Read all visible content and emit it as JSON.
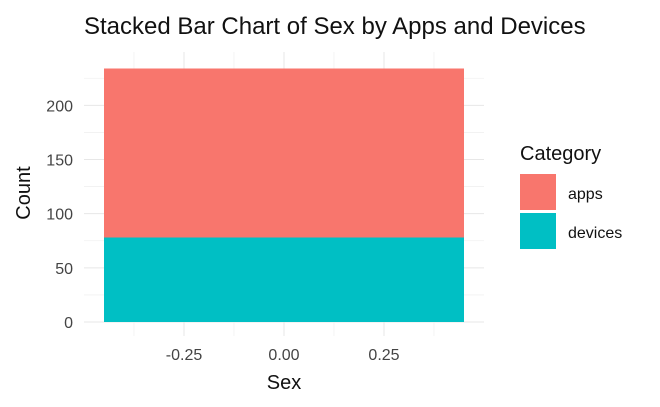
{
  "chart_data": {
    "type": "bar",
    "stacked": true,
    "title": "Stacked Bar Chart of Sex by Apps and Devices",
    "xlabel": "Sex",
    "ylabel": "Count",
    "x_ticks": [
      "-0.25",
      "0.00",
      "0.25"
    ],
    "y_ticks": [
      "0",
      "50",
      "100",
      "150",
      "200"
    ],
    "x_tick_values": [
      -0.25,
      0,
      0.25
    ],
    "y_tick_values": [
      0,
      50,
      100,
      150,
      200
    ],
    "xlim": [
      -0.5,
      0.5
    ],
    "ylim": [
      0,
      240
    ],
    "bar_x_range": [
      -0.45,
      0.45
    ],
    "grid": true,
    "legend": {
      "title": "Category",
      "placement": "right",
      "items": [
        "apps",
        "devices"
      ]
    },
    "series": [
      {
        "name": "devices",
        "value": 78,
        "color": "#00BFC4"
      },
      {
        "name": "apps",
        "value": 156,
        "color": "#F8766D"
      }
    ]
  }
}
